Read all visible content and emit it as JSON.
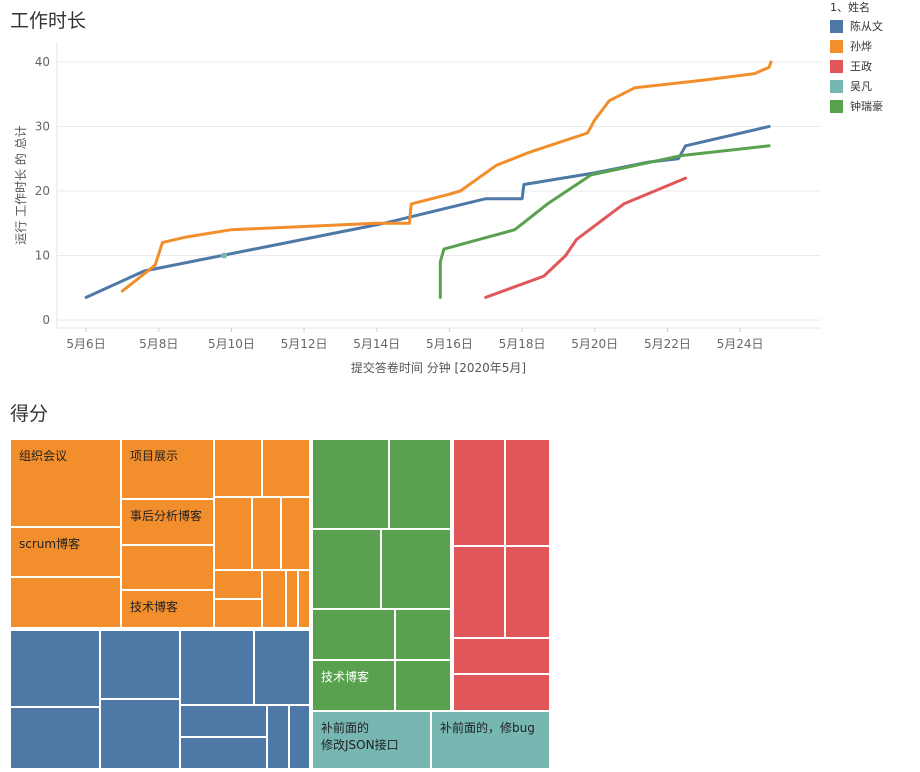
{
  "chart_data": [
    {
      "type": "line",
      "title": "工作时长",
      "xlabel": "提交答卷时间 分钟 [2020年5月]",
      "ylabel": "运行 工作时长 的 总计",
      "ylim": [
        0,
        40
      ],
      "yticks": [
        "0",
        "10",
        "20",
        "30",
        "40"
      ],
      "xticks": [
        "5月6日",
        "5月8日",
        "5月10日",
        "5月12日",
        "5月14日",
        "5月16日",
        "5月18日",
        "5月20日",
        "5月22日",
        "5月24日"
      ],
      "xtick_values": [
        6,
        8,
        10,
        12,
        14,
        16,
        18,
        20,
        22,
        24
      ],
      "xlim": [
        5.2,
        26.2
      ],
      "legend_title": "1、姓名",
      "series": [
        {
          "name": "陈从文",
          "color": "#4e79a7",
          "points": [
            [
              6.0,
              3.5
            ],
            [
              7.6,
              7.6
            ],
            [
              14.2,
              15.0
            ],
            [
              17.0,
              18.8
            ],
            [
              18.0,
              18.8
            ],
            [
              18.05,
              21.0
            ],
            [
              20.0,
              22.8
            ],
            [
              21.5,
              24.5
            ],
            [
              22.3,
              25.0
            ],
            [
              22.5,
              27.0
            ],
            [
              24.8,
              30.0
            ]
          ]
        },
        {
          "name": "孙烨",
          "color": "#f28e2b",
          "points": [
            [
              7.0,
              4.5
            ],
            [
              7.9,
              8.5
            ],
            [
              8.1,
              12.0
            ],
            [
              8.7,
              12.8
            ],
            [
              10.0,
              14.0
            ],
            [
              14.0,
              15.0
            ],
            [
              14.9,
              15.0
            ],
            [
              14.95,
              18.0
            ],
            [
              16.0,
              19.5
            ],
            [
              16.3,
              20.0
            ],
            [
              17.3,
              24.0
            ],
            [
              18.2,
              26.0
            ],
            [
              19.8,
              29.0
            ],
            [
              20.0,
              31.0
            ],
            [
              20.4,
              34.0
            ],
            [
              21.1,
              36.0
            ],
            [
              23.0,
              37.2
            ],
            [
              24.4,
              38.2
            ],
            [
              24.8,
              39.2
            ],
            [
              24.85,
              40.0
            ]
          ]
        },
        {
          "name": "王政",
          "color": "#e15759",
          "points": [
            [
              17.0,
              3.5
            ],
            [
              18.6,
              6.8
            ],
            [
              19.2,
              10.0
            ],
            [
              19.5,
              12.5
            ],
            [
              20.8,
              18.0
            ],
            [
              22.5,
              22.0
            ]
          ]
        },
        {
          "name": "吴凡",
          "color": "#76b7b2",
          "points": [
            [
              9.8,
              10.0
            ]
          ]
        },
        {
          "name": "钟瑞豪",
          "color": "#59a14f",
          "points": [
            [
              15.75,
              3.5
            ],
            [
              15.75,
              9.0
            ],
            [
              15.85,
              11.0
            ],
            [
              17.8,
              14.0
            ],
            [
              18.7,
              18.0
            ],
            [
              19.9,
              22.5
            ],
            [
              22.4,
              25.5
            ],
            [
              24.8,
              27.0
            ]
          ]
        }
      ]
    },
    {
      "type": "treemap",
      "title": "得分",
      "tiles": [
        {
          "label": "组织会议",
          "group": "孙烨"
        },
        {
          "label": "scrum博客",
          "group": "孙烨"
        },
        {
          "label": "",
          "group": "孙烨"
        },
        {
          "label": "项目展示",
          "group": "孙烨"
        },
        {
          "label": "事后分析博客",
          "group": "孙烨"
        },
        {
          "label": "",
          "group": "孙烨"
        },
        {
          "label": "技术博客",
          "group": "孙烨"
        },
        {
          "label": "",
          "group": "孙烨"
        },
        {
          "label": "",
          "group": "孙烨"
        },
        {
          "label": "",
          "group": "孙烨"
        },
        {
          "label": "",
          "group": "孙烨"
        },
        {
          "label": "",
          "group": "孙烨"
        },
        {
          "label": "",
          "group": "孙烨"
        },
        {
          "label": "",
          "group": "孙烨"
        },
        {
          "label": "",
          "group": "孙烨"
        },
        {
          "label": "",
          "group": "孙烨"
        },
        {
          "label": "",
          "group": "孙烨"
        },
        {
          "label": "",
          "group": "陈从文"
        },
        {
          "label": "",
          "group": "陈从文"
        },
        {
          "label": "",
          "group": "陈从文"
        },
        {
          "label": "",
          "group": "陈从文"
        },
        {
          "label": "",
          "group": "陈从文"
        },
        {
          "label": "",
          "group": "陈从文"
        },
        {
          "label": "",
          "group": "陈从文"
        },
        {
          "label": "",
          "group": "陈从文"
        },
        {
          "label": "",
          "group": "陈从文"
        },
        {
          "label": "",
          "group": "陈从文"
        },
        {
          "label": "",
          "group": "钟瑞豪"
        },
        {
          "label": "",
          "group": "钟瑞豪"
        },
        {
          "label": "",
          "group": "钟瑞豪"
        },
        {
          "label": "",
          "group": "钟瑞豪"
        },
        {
          "label": "",
          "group": "钟瑞豪"
        },
        {
          "label": "",
          "group": "钟瑞豪"
        },
        {
          "label": "技术博客",
          "group": "钟瑞豪"
        },
        {
          "label": "",
          "group": "钟瑞豪"
        },
        {
          "label": "",
          "group": "王政"
        },
        {
          "label": "",
          "group": "王政"
        },
        {
          "label": "",
          "group": "王政"
        },
        {
          "label": "",
          "group": "王政"
        },
        {
          "label": "",
          "group": "王政"
        },
        {
          "label": "",
          "group": "王政"
        },
        {
          "label": "补前面的\n修改JSON接口",
          "group": "吴凡"
        },
        {
          "label": "补前面的，修bug",
          "group": "吴凡"
        }
      ]
    }
  ]
}
